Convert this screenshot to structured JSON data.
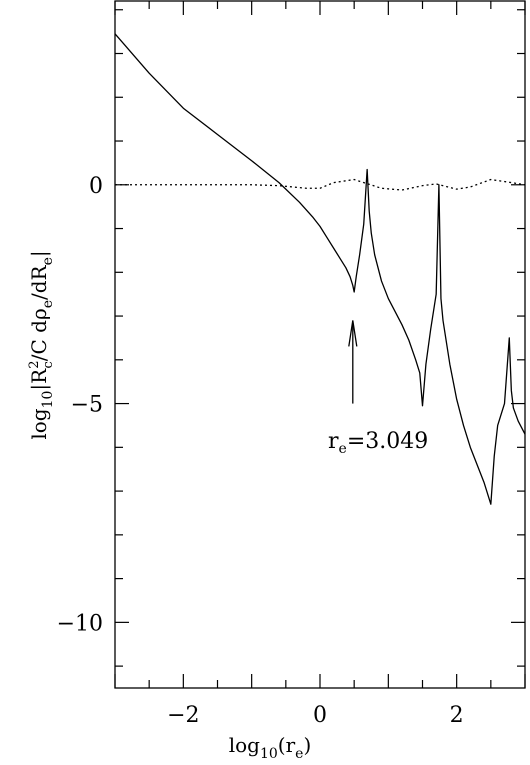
{
  "chart_data": {
    "type": "line",
    "title": "",
    "xlabel": "log10(re)",
    "ylabel": "log10|R²c/C dρe/dRe|",
    "xlim": [
      -3,
      3
    ],
    "ylim": [
      -11.5,
      4.2
    ],
    "xticks": [
      -2,
      0,
      2
    ],
    "yticks": [
      0,
      -5,
      -10
    ],
    "x_tick_labels": [
      "−2",
      "0",
      "2"
    ],
    "y_tick_labels": [
      "0",
      "−5",
      "−10"
    ],
    "grid": false,
    "series": [
      {
        "style": "solid",
        "color": "#000000",
        "x": [
          -3.0,
          -2.5,
          -2.0,
          -1.5,
          -1.0,
          -0.6,
          -0.3,
          -0.1,
          0.0,
          0.1,
          0.2,
          0.3,
          0.38,
          0.44,
          0.48,
          0.5,
          0.53,
          0.58,
          0.64,
          0.69,
          0.72,
          0.75,
          0.8,
          0.9,
          1.0,
          1.1,
          1.2,
          1.3,
          1.4,
          1.46,
          1.5,
          1.55,
          1.62,
          1.7,
          1.74,
          1.77,
          1.8,
          1.9,
          2.0,
          2.1,
          2.2,
          2.3,
          2.4,
          2.5,
          2.55,
          2.6,
          2.7,
          2.77,
          2.8,
          2.83,
          2.9,
          3.0
        ],
        "y": [
          3.45,
          2.55,
          1.75,
          1.15,
          0.55,
          0.05,
          -0.4,
          -0.75,
          -0.95,
          -1.2,
          -1.45,
          -1.7,
          -1.9,
          -2.1,
          -2.3,
          -2.45,
          -2.1,
          -1.6,
          -0.9,
          0.35,
          -0.6,
          -1.1,
          -1.6,
          -2.2,
          -2.6,
          -2.9,
          -3.2,
          -3.55,
          -4.0,
          -4.3,
          -5.05,
          -4.1,
          -3.3,
          -2.5,
          0.0,
          -2.6,
          -3.1,
          -4.1,
          -4.9,
          -5.5,
          -6.0,
          -6.4,
          -6.8,
          -7.3,
          -6.2,
          -5.5,
          -5.0,
          -3.5,
          -4.7,
          -5.1,
          -5.4,
          -5.7
        ]
      },
      {
        "style": "dotted",
        "color": "#000000",
        "x": [
          -3.0,
          -2.5,
          -2.0,
          -1.5,
          -1.0,
          -0.6,
          -0.2,
          0.0,
          0.2,
          0.5,
          0.7,
          0.9,
          1.2,
          1.5,
          1.7,
          2.0,
          2.2,
          2.5,
          2.8,
          3.0
        ],
        "y": [
          0.0,
          0.0,
          0.0,
          0.0,
          0.0,
          -0.02,
          -0.08,
          -0.08,
          0.05,
          0.12,
          0.02,
          -0.08,
          -0.12,
          -0.02,
          0.02,
          -0.1,
          -0.05,
          0.12,
          0.05,
          0.0
        ]
      }
    ],
    "annotations": [
      {
        "text": "re=3.049",
        "x": 0.5,
        "y": -6.0
      }
    ],
    "arrow": {
      "x": 0.48,
      "from_y": -5.0,
      "to_y": -3.1
    }
  },
  "labels": {
    "ylabel_prefix": "log",
    "ylabel_prefix_sub": "10",
    "ylabel_body_1": "|R",
    "ylabel_sup": "2",
    "ylabel_sub_c": "c",
    "ylabel_body_2": "/C dρ",
    "ylabel_sub_e1": "e",
    "ylabel_body_3": "/dR",
    "ylabel_sub_e2": "e",
    "ylabel_body_4": "|",
    "xlabel_prefix": "log",
    "xlabel_prefix_sub": "10",
    "xlabel_body_1": "(r",
    "xlabel_sub": "e",
    "xlabel_body_2": ")",
    "annotation_r": "r",
    "annotation_sub": "e",
    "annotation_value": "=3.049"
  }
}
